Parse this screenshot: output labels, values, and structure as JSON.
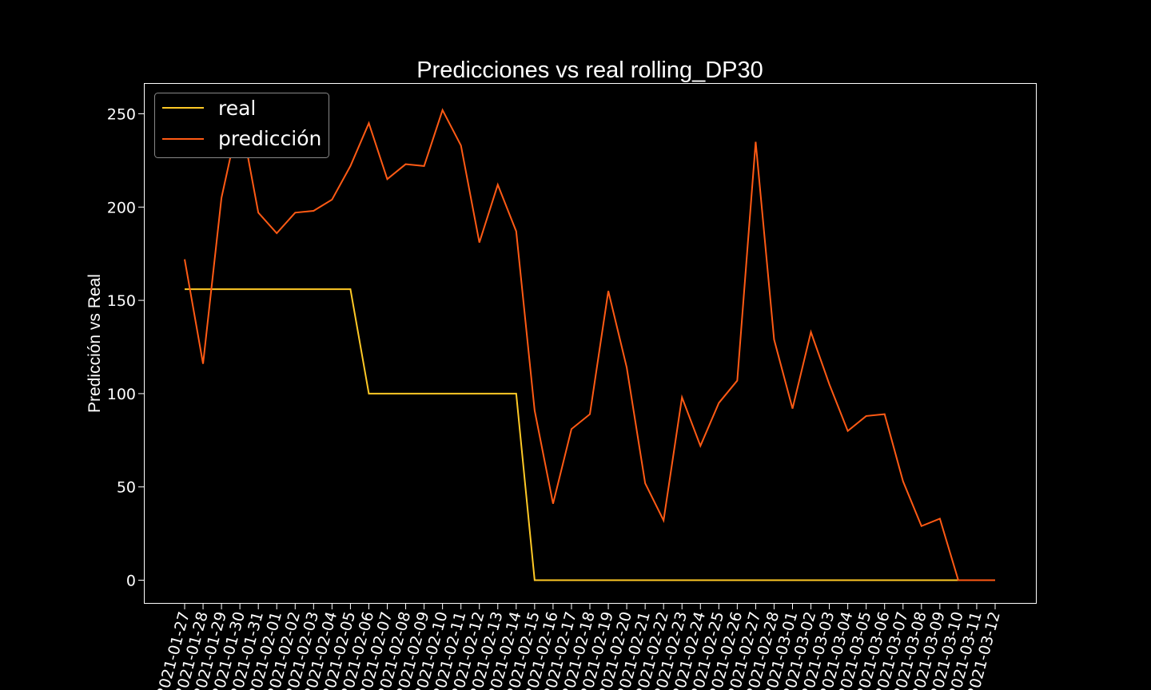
{
  "chart_data": {
    "type": "line",
    "title": "Predicciones vs real rolling_DP30",
    "xlabel": "",
    "ylabel": "Predicción vs Real",
    "ylim": [
      -12.5,
      262.5
    ],
    "yticks": [
      "0",
      "50",
      "100",
      "150",
      "200",
      "250"
    ],
    "grid": false,
    "legend_position": "top-left",
    "x": [
      "2021-01-27",
      "2021-01-28",
      "2021-01-29",
      "2021-01-30",
      "2021-01-31",
      "2021-02-01",
      "2021-02-02",
      "2021-02-03",
      "2021-02-04",
      "2021-02-05",
      "2021-02-06",
      "2021-02-07",
      "2021-02-08",
      "2021-02-09",
      "2021-02-10",
      "2021-02-11",
      "2021-02-12",
      "2021-02-13",
      "2021-02-14",
      "2021-02-15",
      "2021-02-16",
      "2021-02-17",
      "2021-02-18",
      "2021-02-19",
      "2021-02-20",
      "2021-02-21",
      "2021-02-22",
      "2021-02-23",
      "2021-02-24",
      "2021-02-25",
      "2021-02-26",
      "2021-02-27",
      "2021-02-28",
      "2021-03-01",
      "2021-03-02",
      "2021-03-03",
      "2021-03-04",
      "2021-03-05",
      "2021-03-06",
      "2021-03-07",
      "2021-03-08",
      "2021-03-09",
      "2021-03-10",
      "2021-03-11",
      "2021-03-12"
    ],
    "series": [
      {
        "name": "real",
        "color": "#ffc926",
        "values": [
          156,
          156,
          156,
          156,
          156,
          156,
          156,
          156,
          156,
          156,
          100,
          100,
          100,
          100,
          100,
          100,
          100,
          100,
          100,
          0,
          0,
          0,
          0,
          0,
          0,
          0,
          0,
          0,
          0,
          0,
          0,
          0,
          0,
          0,
          0,
          0,
          0,
          0,
          0,
          0,
          0,
          0,
          0,
          0,
          0
        ]
      },
      {
        "name": "predicción",
        "color": "#ff5a14",
        "values": [
          172,
          116,
          205,
          250,
          197,
          186,
          197,
          198,
          204,
          222,
          245,
          215,
          223,
          222,
          252,
          233,
          181,
          212,
          187,
          91,
          41,
          81,
          89,
          155,
          114,
          52,
          32,
          98,
          72,
          95,
          107,
          235,
          129,
          92,
          133,
          105,
          80,
          88,
          89,
          53,
          29,
          33,
          0,
          0,
          0
        ]
      }
    ]
  }
}
